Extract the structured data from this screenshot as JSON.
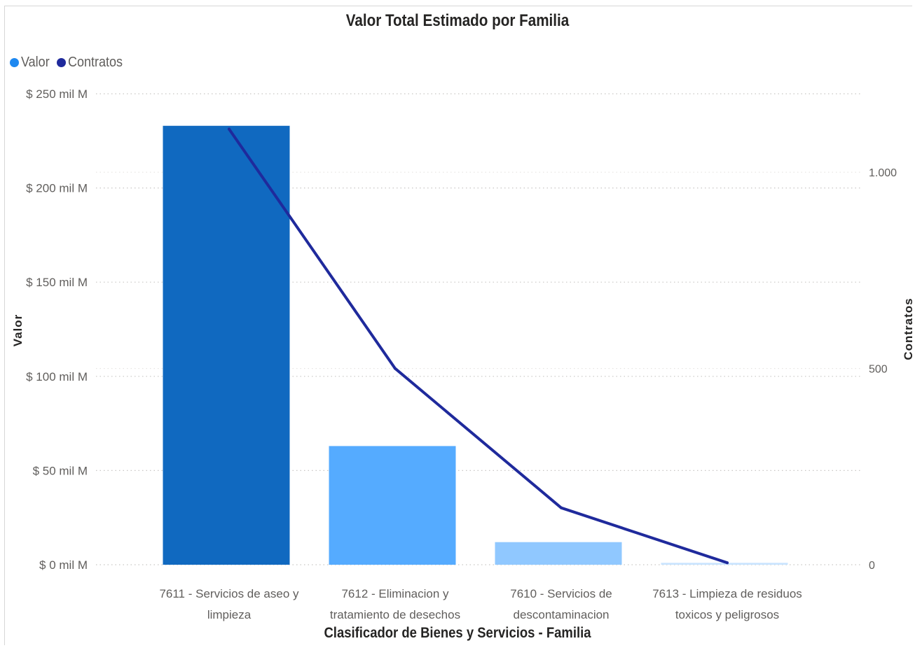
{
  "chart_data": {
    "type": "bar",
    "title": "Valor Total Estimado por Familia",
    "categories": [
      "7611 - Servicios de aseo y limpieza",
      "7612 - Eliminacion y tratamiento de desechos",
      "7610 - Servicios de descontaminacion",
      "7613 - Limpieza de residuos toxicos y peligrosos"
    ],
    "category_lines": [
      [
        "7611 - Servicios de aseo y",
        "limpieza"
      ],
      [
        "7612 - Eliminacion y",
        "tratamiento de desechos"
      ],
      [
        "7610 - Servicios de",
        "descontaminacion"
      ],
      [
        "7613 - Limpieza de residuos",
        "toxicos y peligrosos"
      ]
    ],
    "series": [
      {
        "name": "Valor",
        "type": "bar",
        "axis": "left",
        "values": [
          233,
          63,
          12,
          1
        ],
        "colors": [
          "#1069C0",
          "#55ABFF",
          "#90C8FF",
          "#C9E4FF"
        ]
      },
      {
        "name": "Contratos",
        "type": "line",
        "axis": "right",
        "values": [
          1110,
          500,
          145,
          5
        ],
        "color": "#1F2A9C"
      }
    ],
    "legend": {
      "position": "top-left",
      "items": [
        {
          "label": "Valor",
          "color": "#1E88F0"
        },
        {
          "label": "Contratos",
          "color": "#1F2A9C"
        }
      ]
    },
    "ylabel": "Valor",
    "y2label": "Contratos",
    "xlabel": "Clasificador de Bienes y Servicios - Familia",
    "ylim": [
      0,
      250
    ],
    "y_ticks": [
      0,
      50,
      100,
      150,
      200,
      250
    ],
    "y_tick_labels": [
      "$ 0 mil M",
      "$ 50 mil M",
      "$ 100 mil M",
      "$ 150 mil M",
      "$ 200 mil M",
      "$ 250 mil M"
    ],
    "y2lim": [
      0,
      1200
    ],
    "y2_ticks": [
      0,
      500,
      1000
    ],
    "y2_tick_labels": [
      "0",
      "500",
      "1.000"
    ],
    "grid": true
  }
}
